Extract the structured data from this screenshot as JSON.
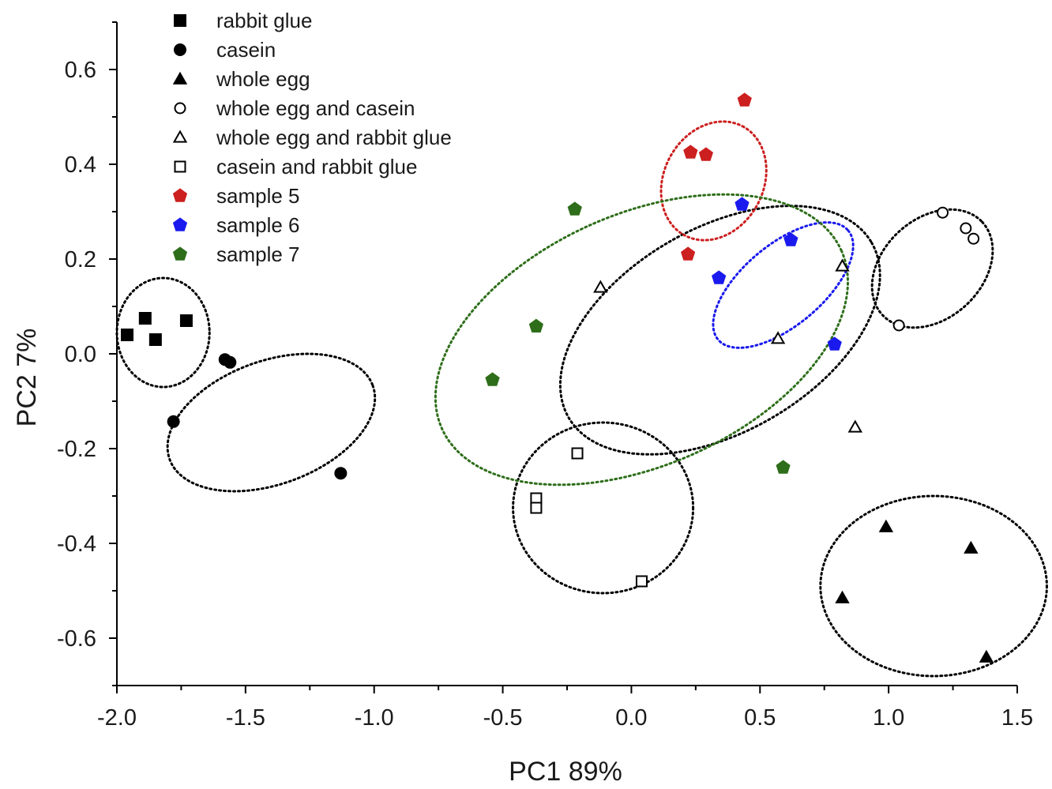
{
  "chart_data": {
    "type": "scatter",
    "title": "",
    "xlabel": "PC1 89%",
    "ylabel": "PC2 7%",
    "xlim": [
      -2.0,
      1.5
    ],
    "ylim": [
      -0.7,
      0.7
    ],
    "xticks": [
      -2.0,
      -1.5,
      -1.0,
      -0.5,
      0.0,
      0.5,
      1.0,
      1.5
    ],
    "xtick_labels": [
      "-2.0",
      "-1.5",
      "-1.0",
      "-0.5",
      "0.0",
      "0.5",
      "1.0",
      "1.5"
    ],
    "yticks": [
      -0.6,
      -0.4,
      -0.2,
      0.0,
      0.2,
      0.4,
      0.6
    ],
    "ytick_labels": [
      "-0.6",
      "-0.4",
      "-0.2",
      "0.0",
      "0.2",
      "0.4",
      "0.6"
    ],
    "grid": false,
    "legend_position": "top-left",
    "series": [
      {
        "name": "rabbit glue",
        "marker": "square-filled",
        "color": "#000000",
        "points": [
          [
            -1.96,
            0.04
          ],
          [
            -1.89,
            0.075
          ],
          [
            -1.85,
            0.03
          ],
          [
            -1.73,
            0.07
          ]
        ]
      },
      {
        "name": "casein",
        "marker": "circle-filled",
        "color": "#000000",
        "points": [
          [
            -1.58,
            -0.012
          ],
          [
            -1.56,
            -0.018
          ],
          [
            -1.78,
            -0.143
          ],
          [
            -1.13,
            -0.252
          ]
        ]
      },
      {
        "name": "whole egg",
        "marker": "triangle-filled",
        "color": "#000000",
        "points": [
          [
            0.99,
            -0.365
          ],
          [
            1.32,
            -0.41
          ],
          [
            0.82,
            -0.515
          ],
          [
            1.38,
            -0.64
          ]
        ]
      },
      {
        "name": "whole egg and casein",
        "marker": "circle-open",
        "color": "#000000",
        "points": [
          [
            1.21,
            0.298
          ],
          [
            1.3,
            0.265
          ],
          [
            1.33,
            0.243
          ],
          [
            1.04,
            0.06
          ]
        ]
      },
      {
        "name": "whole egg and rabbit glue",
        "marker": "triangle-open",
        "color": "#000000",
        "points": [
          [
            -0.12,
            0.14
          ],
          [
            0.82,
            0.185
          ],
          [
            0.57,
            0.032
          ],
          [
            0.87,
            -0.155
          ]
        ]
      },
      {
        "name": "casein and rabbit glue",
        "marker": "square-open",
        "color": "#000000",
        "points": [
          [
            -0.21,
            -0.21
          ],
          [
            -0.37,
            -0.305
          ],
          [
            -0.37,
            -0.325
          ],
          [
            0.04,
            -0.48
          ]
        ]
      },
      {
        "name": "sample 5",
        "marker": "pentagon-filled",
        "color": "#cc1f1f",
        "points": [
          [
            0.44,
            0.535
          ],
          [
            0.23,
            0.425
          ],
          [
            0.29,
            0.42
          ],
          [
            0.22,
            0.21
          ]
        ]
      },
      {
        "name": "sample 6",
        "marker": "pentagon-filled",
        "color": "#1a1aee",
        "points": [
          [
            0.43,
            0.315
          ],
          [
            0.62,
            0.24
          ],
          [
            0.34,
            0.16
          ],
          [
            0.79,
            0.02
          ]
        ]
      },
      {
        "name": "sample 7",
        "marker": "pentagon-filled",
        "color": "#2e6e1a",
        "points": [
          [
            -0.22,
            0.305
          ],
          [
            -0.37,
            0.058
          ],
          [
            -0.54,
            -0.055
          ],
          [
            0.59,
            -0.24
          ]
        ]
      }
    ],
    "annotations": [
      {
        "kind": "dotted-ellipse",
        "color": "#000000",
        "center": [
          -1.82,
          0.045
        ],
        "rx": 0.18,
        "ry": 0.115,
        "angle": 0
      },
      {
        "kind": "dotted-ellipse",
        "color": "#000000",
        "center": [
          -1.4,
          -0.145
        ],
        "rx": 0.42,
        "ry": 0.13,
        "angle": -20
      },
      {
        "kind": "dotted-ellipse",
        "color": "#000000",
        "center": [
          -0.11,
          -0.325
        ],
        "rx": 0.35,
        "ry": 0.18,
        "angle": 0
      },
      {
        "kind": "dotted-ellipse",
        "color": "#000000",
        "center": [
          1.175,
          -0.49
        ],
        "rx": 0.44,
        "ry": 0.19,
        "angle": 0
      },
      {
        "kind": "dotted-ellipse",
        "color": "#000000",
        "center": [
          0.345,
          0.05
        ],
        "rx": 0.68,
        "ry": 0.215,
        "angle": -30
      },
      {
        "kind": "dotted-ellipse",
        "color": "#000000",
        "center": [
          1.17,
          0.18
        ],
        "rx": 0.265,
        "ry": 0.105,
        "angle": -43
      },
      {
        "kind": "dotted-ellipse",
        "color": "#cc1f1f",
        "center": [
          0.32,
          0.365
        ],
        "rx": 0.24,
        "ry": 0.105,
        "angle": -62
      },
      {
        "kind": "dotted-ellipse",
        "color": "#1a1aee",
        "center": [
          0.59,
          0.145
        ],
        "rx": 0.33,
        "ry": 0.085,
        "angle": -40
      },
      {
        "kind": "dotted-ellipse",
        "color": "#2e6e1a",
        "center": [
          0.04,
          0.03
        ],
        "rx": 0.85,
        "ry": 0.265,
        "angle": -24
      }
    ]
  }
}
